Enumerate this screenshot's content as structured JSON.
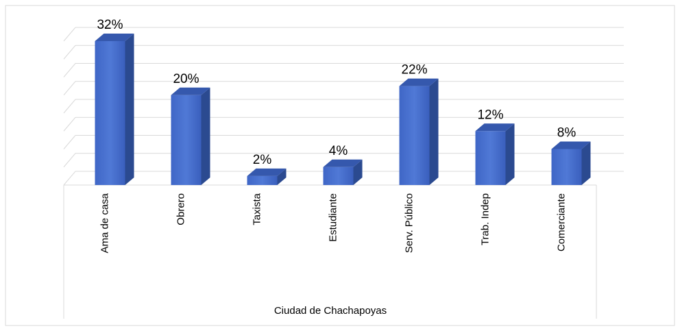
{
  "chart_data": {
    "type": "bar3d",
    "categories": [
      "Ama de casa",
      "Obrero",
      "Taxista",
      "Estudiante",
      "Serv. Público",
      "Trab. Indep",
      "Comerciante"
    ],
    "values": [
      32,
      20,
      2,
      4,
      22,
      12,
      8
    ],
    "value_labels": [
      "32%",
      "20%",
      "2%",
      "4%",
      "22%",
      "12%",
      "8%"
    ],
    "color": "#4472c4",
    "xlabel": "Ciudad de Chachapoyas",
    "ylim": [
      0,
      32
    ],
    "yticks": [
      0,
      4,
      8,
      12,
      16,
      20,
      24,
      28,
      32
    ],
    "grid": true
  }
}
